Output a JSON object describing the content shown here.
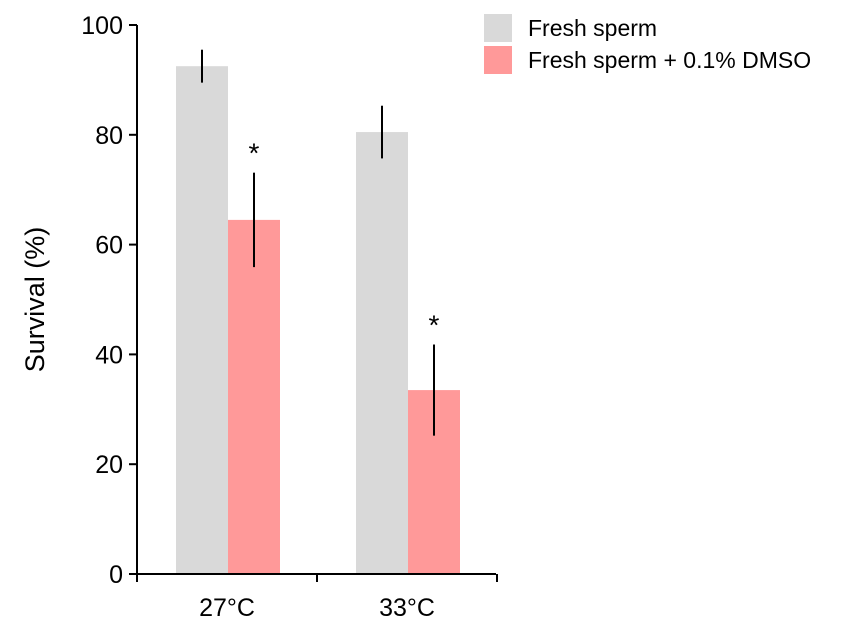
{
  "chart_data": {
    "type": "bar",
    "title": "",
    "xlabel": "",
    "ylabel": "Survival (%)",
    "categories": [
      "27°C",
      "33°C"
    ],
    "ylim": [
      0,
      100
    ],
    "yticks": [
      0,
      20,
      40,
      60,
      80,
      100
    ],
    "ytick_labels": [
      "0",
      "20",
      "40",
      "60",
      "80",
      "100"
    ],
    "grid": false,
    "legend": "top-right",
    "series": [
      {
        "name": "Fresh sperm",
        "color": "#d9d9d9",
        "values": [
          92.5,
          80.5
        ],
        "errors": [
          3.0,
          4.8
        ],
        "significance": [
          "",
          ""
        ]
      },
      {
        "name": "Fresh sperm + 0.1% DMSO",
        "color": "#ff9999",
        "values": [
          64.5,
          33.5
        ],
        "errors": [
          8.6,
          8.3
        ],
        "significance": [
          "*",
          "*"
        ]
      }
    ]
  }
}
